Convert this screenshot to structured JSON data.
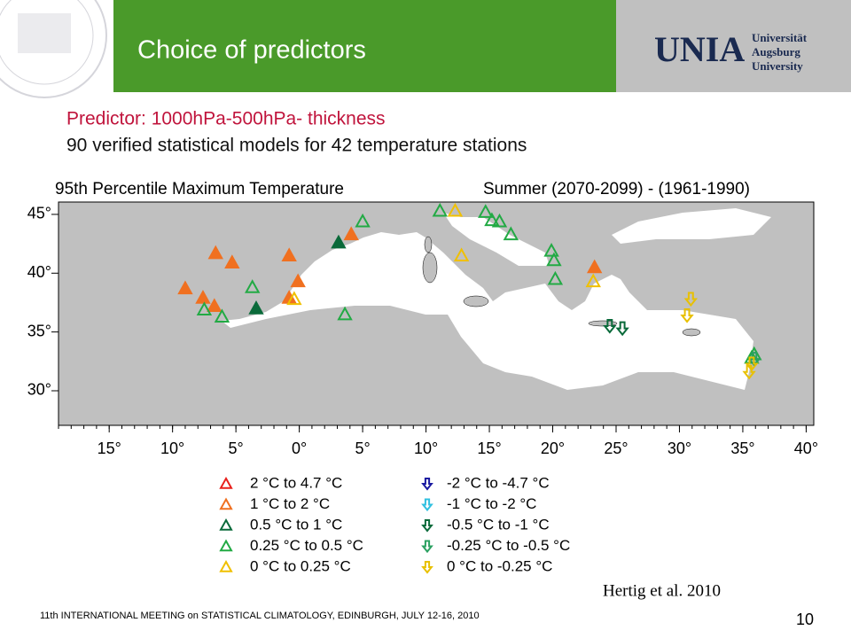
{
  "header": {
    "title": "Choice of predictors",
    "logo_mark": "UNIA",
    "logo_lines": [
      "Universität",
      "Augsburg",
      "University"
    ]
  },
  "subtitle": {
    "line1": "Predictor: 1000hPa-500hPa- thickness",
    "line2": "90 verified statistical models for 42 temperature stations"
  },
  "chart_data": {
    "type": "map",
    "title_left": "95th Percentile Maximum Temperature",
    "title_right": "Summer (2070-2099) - (1961-1990)",
    "xlim": [
      -19,
      40.6
    ],
    "ylim": [
      27.06,
      46.05
    ],
    "xticks": [
      {
        "value": -15,
        "label": "15°"
      },
      {
        "value": -10,
        "label": "10°"
      },
      {
        "value": -5,
        "label": "5°"
      },
      {
        "value": 0,
        "label": "0°"
      },
      {
        "value": 5,
        "label": "5°"
      },
      {
        "value": 10,
        "label": "10°"
      },
      {
        "value": 15,
        "label": "15°"
      },
      {
        "value": 20,
        "label": "20°"
      },
      {
        "value": 25,
        "label": "25°"
      },
      {
        "value": 30,
        "label": "30°"
      },
      {
        "value": 35,
        "label": "35°"
      },
      {
        "value": 40,
        "label": "40°"
      }
    ],
    "yticks": [
      {
        "value": 45,
        "label": "45°"
      },
      {
        "value": 40,
        "label": "40°"
      },
      {
        "value": 35,
        "label": "35°"
      },
      {
        "value": 30,
        "label": "30°"
      }
    ],
    "series": [
      {
        "name": "2 °C  to  4.7 °C",
        "color": "#e8201c",
        "marker": "up",
        "filled": true,
        "lon": [],
        "lat": []
      },
      {
        "name": "1 °C  to  2 °C",
        "color": "#f07020",
        "marker": "up",
        "filled": true,
        "lon": [
          -9.0,
          -7.6,
          -6.7,
          -6.6,
          -5.3,
          -0.8,
          -0.1,
          -0.8,
          4.1,
          23.3
        ],
        "lat": [
          38.7,
          37.9,
          37.2,
          41.7,
          40.9,
          41.5,
          39.3,
          37.9,
          43.3,
          40.5
        ]
      },
      {
        "name": "0.5 °C  to  1 °C",
        "color": "#0a6a3a",
        "marker": "up",
        "filled": true,
        "lon": [
          -3.4,
          3.1
        ],
        "lat": [
          37.0,
          42.6
        ]
      },
      {
        "name": "0.25 °C  to  0.5 °C",
        "color": "#22aa44",
        "marker": "up",
        "filled": false,
        "lon": [
          -7.5,
          -6.1,
          -3.7,
          3.6,
          5.0,
          11.1,
          14.7,
          15.2,
          15.8,
          16.7,
          19.9,
          20.1,
          20.2,
          35.9,
          35.7
        ],
        "lat": [
          36.9,
          36.3,
          38.8,
          36.5,
          44.4,
          45.3,
          45.2,
          44.5,
          44.4,
          43.3,
          41.9,
          41.1,
          39.5,
          33.1,
          32.8
        ]
      },
      {
        "name": "0 °C  to  0.25 °C",
        "color": "#f0c000",
        "marker": "up",
        "filled": false,
        "lon": [
          12.3,
          12.8,
          -0.4,
          23.2
        ],
        "lat": [
          45.3,
          41.5,
          37.8,
          39.3
        ]
      },
      {
        "name": "-2 °C  to  -4.7 °C",
        "color": "#1a1aa0",
        "marker": "down",
        "filled": false,
        "lon": [],
        "lat": []
      },
      {
        "name": "-1 °C  to  -2 °C",
        "color": "#30c0e0",
        "marker": "down",
        "filled": false,
        "lon": [],
        "lat": []
      },
      {
        "name": "-0.5 °C  to  -1 °C",
        "color": "#0a6a3a",
        "marker": "down",
        "filled": false,
        "lon": [
          24.5,
          25.5
        ],
        "lat": [
          35.5,
          35.3
        ]
      },
      {
        "name": "-0.25 °C  to  -0.5 °C",
        "color": "#2aa060",
        "marker": "down",
        "filled": false,
        "lon": [
          35.9
        ],
        "lat": [
          32.7
        ]
      },
      {
        "name": "0 °C  to  -0.25 °C",
        "color": "#e8c000",
        "marker": "down",
        "filled": false,
        "lon": [
          30.9,
          30.6,
          35.7,
          35.5
        ],
        "lat": [
          37.8,
          36.4,
          32.3,
          31.6
        ]
      }
    ]
  },
  "citation": "Hertig et al. 2010",
  "footer": {
    "text": "11th INTERNATIONAL MEETING on STATISTICAL CLIMATOLOGY, EDINBURGH, JULY 12-16, 2010",
    "page": "10"
  }
}
